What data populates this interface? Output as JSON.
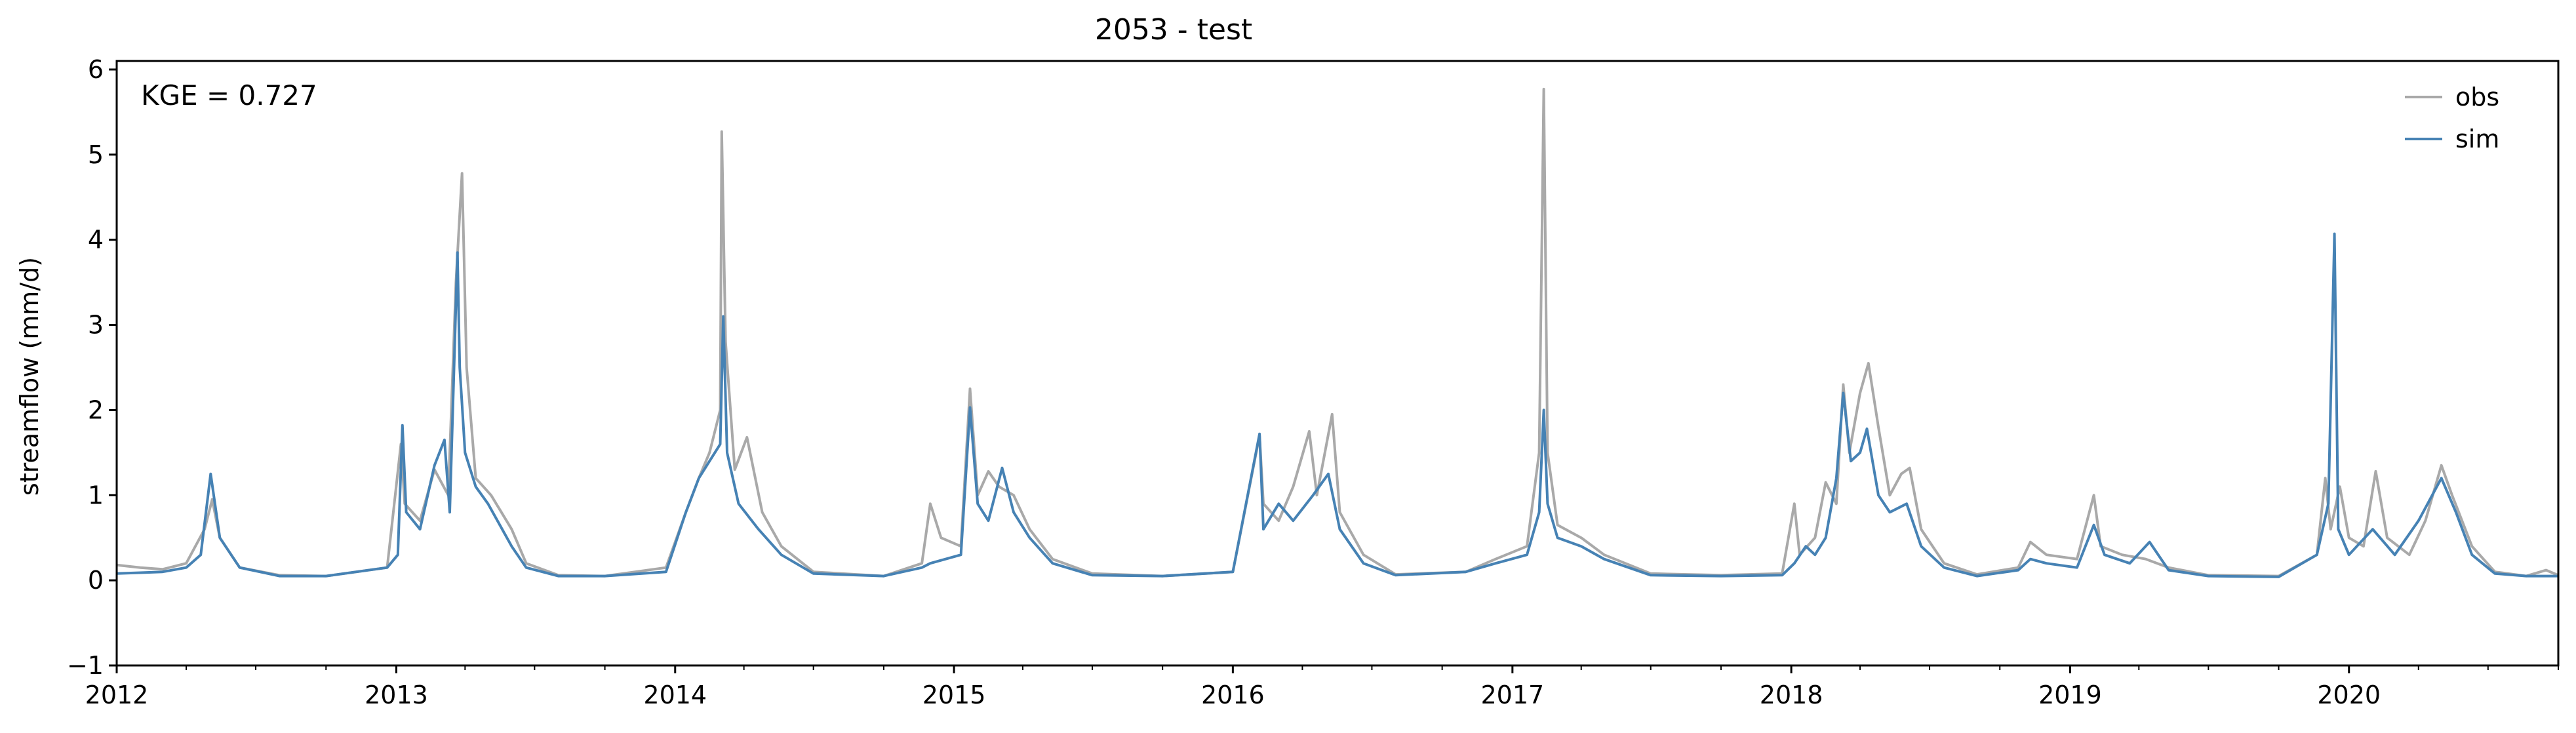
{
  "chart_data": {
    "type": "line",
    "title": "2053 - test",
    "xlabel": "",
    "ylabel": "streamflow (mm/d)",
    "annotation": "KGE = 0.727",
    "xlim": [
      "2012-01-01",
      "2020-10-01"
    ],
    "ylim": [
      -1,
      6.1
    ],
    "y_ticks": [
      -1,
      0,
      1,
      2,
      3,
      4,
      5,
      6
    ],
    "x_ticks": [
      "2012",
      "2013",
      "2014",
      "2015",
      "2016",
      "2017",
      "2018",
      "2019",
      "2020"
    ],
    "grid": false,
    "legend_position": "top-right",
    "series": [
      {
        "name": "obs",
        "color": "#a9a9a9",
        "points": [
          [
            "2012-01-01",
            0.18
          ],
          [
            "2012-02-01",
            0.15
          ],
          [
            "2012-03-01",
            0.13
          ],
          [
            "2012-04-01",
            0.2
          ],
          [
            "2012-04-25",
            0.6
          ],
          [
            "2012-05-05",
            0.95
          ],
          [
            "2012-05-15",
            0.5
          ],
          [
            "2012-06-10",
            0.15
          ],
          [
            "2012-08-01",
            0.06
          ],
          [
            "2012-10-01",
            0.05
          ],
          [
            "2012-12-20",
            0.15
          ],
          [
            "2013-01-07",
            1.6
          ],
          [
            "2013-01-12",
            0.9
          ],
          [
            "2013-02-01",
            0.7
          ],
          [
            "2013-02-20",
            1.3
          ],
          [
            "2013-03-10",
            1.0
          ],
          [
            "2013-03-20",
            3.5
          ],
          [
            "2013-03-28",
            4.78
          ],
          [
            "2013-04-03",
            2.5
          ],
          [
            "2013-04-15",
            1.2
          ],
          [
            "2013-05-05",
            1.0
          ],
          [
            "2013-06-01",
            0.6
          ],
          [
            "2013-06-20",
            0.2
          ],
          [
            "2013-08-01",
            0.06
          ],
          [
            "2013-10-01",
            0.05
          ],
          [
            "2013-12-20",
            0.15
          ],
          [
            "2014-01-15",
            0.8
          ],
          [
            "2014-02-01",
            1.2
          ],
          [
            "2014-02-15",
            1.5
          ],
          [
            "2014-03-01",
            2.0
          ],
          [
            "2014-03-03",
            5.27
          ],
          [
            "2014-03-08",
            2.8
          ],
          [
            "2014-03-20",
            1.3
          ],
          [
            "2014-04-05",
            1.68
          ],
          [
            "2014-04-25",
            0.8
          ],
          [
            "2014-05-20",
            0.4
          ],
          [
            "2014-07-01",
            0.1
          ],
          [
            "2014-10-01",
            0.05
          ],
          [
            "2014-11-20",
            0.2
          ],
          [
            "2014-12-01",
            0.9
          ],
          [
            "2014-12-15",
            0.5
          ],
          [
            "2015-01-10",
            0.4
          ],
          [
            "2015-01-22",
            2.25
          ],
          [
            "2015-02-01",
            1.0
          ],
          [
            "2015-02-15",
            1.28
          ],
          [
            "2015-03-01",
            1.1
          ],
          [
            "2015-03-20",
            1.0
          ],
          [
            "2015-04-10",
            0.6
          ],
          [
            "2015-05-10",
            0.25
          ],
          [
            "2015-07-01",
            0.08
          ],
          [
            "2015-10-01",
            0.05
          ],
          [
            "2016-01-01",
            0.1
          ],
          [
            "2016-02-05",
            1.7
          ],
          [
            "2016-02-10",
            0.9
          ],
          [
            "2016-03-01",
            0.7
          ],
          [
            "2016-03-20",
            1.1
          ],
          [
            "2016-04-10",
            1.75
          ],
          [
            "2016-04-20",
            1.0
          ],
          [
            "2016-05-10",
            1.95
          ],
          [
            "2016-05-20",
            0.8
          ],
          [
            "2016-06-20",
            0.3
          ],
          [
            "2016-08-01",
            0.07
          ],
          [
            "2016-11-01",
            0.1
          ],
          [
            "2016-12-10",
            0.25
          ],
          [
            "2017-01-20",
            0.4
          ],
          [
            "2017-02-05",
            1.5
          ],
          [
            "2017-02-11",
            5.77
          ],
          [
            "2017-02-16",
            1.5
          ],
          [
            "2017-03-01",
            0.65
          ],
          [
            "2017-04-01",
            0.5
          ],
          [
            "2017-05-01",
            0.3
          ],
          [
            "2017-07-01",
            0.08
          ],
          [
            "2017-10-01",
            0.06
          ],
          [
            "2017-12-20",
            0.08
          ],
          [
            "2018-01-05",
            0.9
          ],
          [
            "2018-01-12",
            0.3
          ],
          [
            "2018-02-01",
            0.5
          ],
          [
            "2018-02-15",
            1.15
          ],
          [
            "2018-03-01",
            0.9
          ],
          [
            "2018-03-10",
            2.3
          ],
          [
            "2018-03-18",
            1.5
          ],
          [
            "2018-04-01",
            2.2
          ],
          [
            "2018-04-12",
            2.55
          ],
          [
            "2018-04-25",
            1.8
          ],
          [
            "2018-05-10",
            1.0
          ],
          [
            "2018-05-25",
            1.25
          ],
          [
            "2018-06-05",
            1.32
          ],
          [
            "2018-06-20",
            0.6
          ],
          [
            "2018-07-20",
            0.2
          ],
          [
            "2018-09-01",
            0.07
          ],
          [
            "2018-10-25",
            0.15
          ],
          [
            "2018-11-10",
            0.45
          ],
          [
            "2018-12-01",
            0.3
          ],
          [
            "2019-01-10",
            0.25
          ],
          [
            "2019-02-01",
            1.0
          ],
          [
            "2019-02-10",
            0.4
          ],
          [
            "2019-03-10",
            0.3
          ],
          [
            "2019-04-10",
            0.25
          ],
          [
            "2019-05-10",
            0.15
          ],
          [
            "2019-07-01",
            0.06
          ],
          [
            "2019-10-01",
            0.05
          ],
          [
            "2019-11-20",
            0.3
          ],
          [
            "2019-12-01",
            1.2
          ],
          [
            "2019-12-08",
            0.6
          ],
          [
            "2019-12-20",
            1.1
          ],
          [
            "2020-01-01",
            0.5
          ],
          [
            "2020-01-20",
            0.4
          ],
          [
            "2020-02-05",
            1.28
          ],
          [
            "2020-02-20",
            0.5
          ],
          [
            "2020-03-20",
            0.3
          ],
          [
            "2020-04-10",
            0.7
          ],
          [
            "2020-05-01",
            1.35
          ],
          [
            "2020-05-15",
            1.0
          ],
          [
            "2020-06-10",
            0.4
          ],
          [
            "2020-07-10",
            0.1
          ],
          [
            "2020-08-20",
            0.05
          ],
          [
            "2020-09-15",
            0.12
          ],
          [
            "2020-10-01",
            0.06
          ]
        ]
      },
      {
        "name": "sim",
        "color": "#4682b4",
        "points": [
          [
            "2012-01-01",
            0.08
          ],
          [
            "2012-02-01",
            0.09
          ],
          [
            "2012-03-01",
            0.1
          ],
          [
            "2012-04-01",
            0.15
          ],
          [
            "2012-04-20",
            0.3
          ],
          [
            "2012-05-03",
            1.25
          ],
          [
            "2012-05-15",
            0.5
          ],
          [
            "2012-06-10",
            0.15
          ],
          [
            "2012-08-01",
            0.05
          ],
          [
            "2012-10-01",
            0.05
          ],
          [
            "2012-12-20",
            0.15
          ],
          [
            "2013-01-03",
            0.3
          ],
          [
            "2013-01-09",
            1.82
          ],
          [
            "2013-01-14",
            0.8
          ],
          [
            "2013-02-01",
            0.6
          ],
          [
            "2013-02-20",
            1.35
          ],
          [
            "2013-03-05",
            1.65
          ],
          [
            "2013-03-12",
            0.8
          ],
          [
            "2013-03-22",
            3.85
          ],
          [
            "2013-03-25",
            2.5
          ],
          [
            "2013-04-01",
            1.5
          ],
          [
            "2013-04-15",
            1.1
          ],
          [
            "2013-05-01",
            0.9
          ],
          [
            "2013-06-01",
            0.4
          ],
          [
            "2013-06-20",
            0.15
          ],
          [
            "2013-08-01",
            0.05
          ],
          [
            "2013-10-01",
            0.05
          ],
          [
            "2013-12-20",
            0.1
          ],
          [
            "2014-01-15",
            0.8
          ],
          [
            "2014-02-01",
            1.2
          ],
          [
            "2014-02-15",
            1.4
          ],
          [
            "2014-03-01",
            1.6
          ],
          [
            "2014-03-05",
            3.1
          ],
          [
            "2014-03-10",
            1.5
          ],
          [
            "2014-03-25",
            0.9
          ],
          [
            "2014-04-20",
            0.6
          ],
          [
            "2014-05-20",
            0.3
          ],
          [
            "2014-07-01",
            0.08
          ],
          [
            "2014-10-01",
            0.05
          ],
          [
            "2014-11-20",
            0.15
          ],
          [
            "2014-12-01",
            0.2
          ],
          [
            "2015-01-10",
            0.3
          ],
          [
            "2015-01-22",
            2.03
          ],
          [
            "2015-02-01",
            0.9
          ],
          [
            "2015-02-15",
            0.7
          ],
          [
            "2015-03-05",
            1.32
          ],
          [
            "2015-03-20",
            0.8
          ],
          [
            "2015-04-10",
            0.5
          ],
          [
            "2015-05-10",
            0.2
          ],
          [
            "2015-07-01",
            0.06
          ],
          [
            "2015-10-01",
            0.05
          ],
          [
            "2016-01-01",
            0.1
          ],
          [
            "2016-02-05",
            1.72
          ],
          [
            "2016-02-10",
            0.6
          ],
          [
            "2016-03-01",
            0.9
          ],
          [
            "2016-03-20",
            0.7
          ],
          [
            "2016-04-15",
            1.0
          ],
          [
            "2016-05-05",
            1.25
          ],
          [
            "2016-05-20",
            0.6
          ],
          [
            "2016-06-20",
            0.2
          ],
          [
            "2016-08-01",
            0.06
          ],
          [
            "2016-11-01",
            0.1
          ],
          [
            "2016-12-10",
            0.2
          ],
          [
            "2017-01-20",
            0.3
          ],
          [
            "2017-02-05",
            0.8
          ],
          [
            "2017-02-11",
            2.0
          ],
          [
            "2017-02-16",
            0.9
          ],
          [
            "2017-03-01",
            0.5
          ],
          [
            "2017-04-01",
            0.4
          ],
          [
            "2017-05-01",
            0.25
          ],
          [
            "2017-07-01",
            0.06
          ],
          [
            "2017-10-01",
            0.05
          ],
          [
            "2017-12-20",
            0.06
          ],
          [
            "2018-01-05",
            0.2
          ],
          [
            "2018-01-20",
            0.4
          ],
          [
            "2018-02-01",
            0.3
          ],
          [
            "2018-02-15",
            0.5
          ],
          [
            "2018-03-01",
            1.2
          ],
          [
            "2018-03-10",
            2.2
          ],
          [
            "2018-03-20",
            1.4
          ],
          [
            "2018-04-01",
            1.5
          ],
          [
            "2018-04-10",
            1.78
          ],
          [
            "2018-04-25",
            1.0
          ],
          [
            "2018-05-10",
            0.8
          ],
          [
            "2018-06-01",
            0.9
          ],
          [
            "2018-06-20",
            0.4
          ],
          [
            "2018-07-20",
            0.15
          ],
          [
            "2018-09-01",
            0.05
          ],
          [
            "2018-10-25",
            0.12
          ],
          [
            "2018-11-10",
            0.25
          ],
          [
            "2018-12-01",
            0.2
          ],
          [
            "2019-01-10",
            0.15
          ],
          [
            "2019-02-01",
            0.65
          ],
          [
            "2019-02-15",
            0.3
          ],
          [
            "2019-03-20",
            0.2
          ],
          [
            "2019-04-15",
            0.45
          ],
          [
            "2019-05-10",
            0.12
          ],
          [
            "2019-07-01",
            0.05
          ],
          [
            "2019-10-01",
            0.04
          ],
          [
            "2019-11-20",
            0.3
          ],
          [
            "2019-12-05",
            0.9
          ],
          [
            "2019-12-13",
            4.07
          ],
          [
            "2019-12-18",
            0.6
          ],
          [
            "2020-01-01",
            0.3
          ],
          [
            "2020-02-01",
            0.6
          ],
          [
            "2020-03-01",
            0.3
          ],
          [
            "2020-04-01",
            0.7
          ],
          [
            "2020-05-01",
            1.2
          ],
          [
            "2020-05-20",
            0.8
          ],
          [
            "2020-06-10",
            0.3
          ],
          [
            "2020-07-10",
            0.08
          ],
          [
            "2020-08-20",
            0.05
          ],
          [
            "2020-10-01",
            0.05
          ]
        ]
      }
    ]
  }
}
